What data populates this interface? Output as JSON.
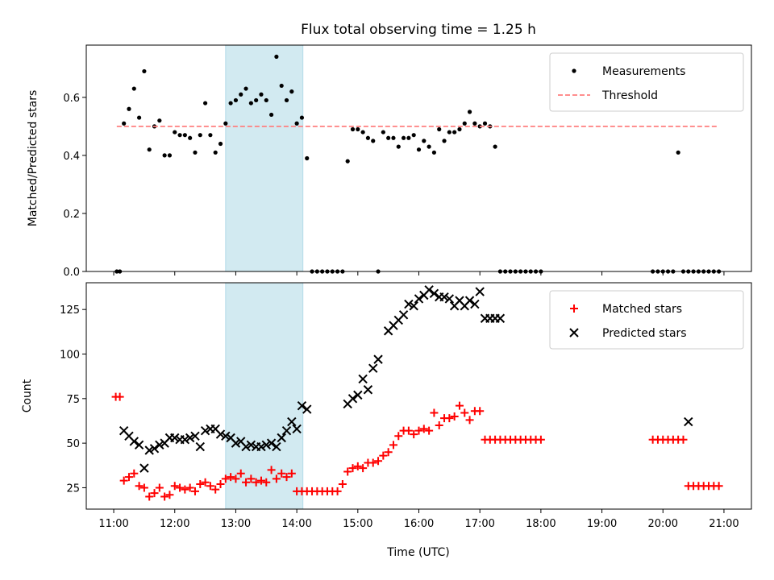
{
  "chart_data": {
    "title": "Flux total observing time = 1.25 h",
    "shaded_region": {
      "x_start": "12:50",
      "x_end": "14:06",
      "color": "#add8e6"
    },
    "xlabel": "Time (UTC)",
    "xticks": [
      "11:00",
      "12:00",
      "13:00",
      "14:00",
      "15:00",
      "16:00",
      "17:00",
      "18:00",
      "19:00",
      "20:00",
      "21:00"
    ],
    "panels": [
      {
        "type": "scatter",
        "ylabel": "Matched/Predicted stars",
        "ylim": [
          0,
          0.78
        ],
        "yticks": [
          "0.0",
          "0.2",
          "0.4",
          "0.6"
        ],
        "legend": {
          "position": "top-right"
        },
        "series": [
          {
            "name": "Measurements",
            "marker": "dot",
            "color": "#000000",
            "x": [
              "11:03",
              "11:06",
              "11:10",
              "11:15",
              "11:20",
              "11:25",
              "11:30",
              "11:35",
              "11:40",
              "11:45",
              "11:50",
              "11:55",
              "12:00",
              "12:05",
              "12:10",
              "12:15",
              "12:20",
              "12:25",
              "12:30",
              "12:35",
              "12:40",
              "12:45",
              "12:50",
              "12:55",
              "13:00",
              "13:05",
              "13:10",
              "13:15",
              "13:20",
              "13:25",
              "13:30",
              "13:35",
              "13:40",
              "13:45",
              "13:50",
              "13:55",
              "14:00",
              "14:05",
              "14:10",
              "14:15",
              "14:20",
              "14:25",
              "14:30",
              "14:35",
              "14:40",
              "14:45",
              "14:50",
              "14:55",
              "15:00",
              "15:05",
              "15:10",
              "15:15",
              "15:20",
              "15:25",
              "15:30",
              "15:35",
              "15:40",
              "15:45",
              "15:50",
              "15:55",
              "16:00",
              "16:05",
              "16:10",
              "16:15",
              "16:20",
              "16:25",
              "16:30",
              "16:35",
              "16:40",
              "16:45",
              "16:50",
              "16:55",
              "17:00",
              "17:05",
              "17:10",
              "17:15",
              "17:20",
              "17:25",
              "17:30",
              "17:35",
              "17:40",
              "17:45",
              "17:50",
              "17:55",
              "18:00",
              "19:50",
              "19:55",
              "20:00",
              "20:05",
              "20:10",
              "20:15",
              "20:20",
              "20:25",
              "20:30",
              "20:35",
              "20:40",
              "20:45",
              "20:50",
              "20:55"
            ],
            "y": [
              0.0,
              0.0,
              0.51,
              0.56,
              0.63,
              0.53,
              0.69,
              0.42,
              0.5,
              0.52,
              0.4,
              0.4,
              0.48,
              0.47,
              0.47,
              0.46,
              0.41,
              0.47,
              0.58,
              0.47,
              0.41,
              0.44,
              0.51,
              0.58,
              0.59,
              0.61,
              0.63,
              0.58,
              0.59,
              0.61,
              0.59,
              0.54,
              0.74,
              0.64,
              0.59,
              0.62,
              0.51,
              0.53,
              0.39,
              0.0,
              0.0,
              0.0,
              0.0,
              0.0,
              0.0,
              0.0,
              0.38,
              0.49,
              0.49,
              0.48,
              0.46,
              0.45,
              0.0,
              0.48,
              0.46,
              0.46,
              0.43,
              0.46,
              0.46,
              0.47,
              0.42,
              0.45,
              0.43,
              0.41,
              0.49,
              0.45,
              0.48,
              0.48,
              0.49,
              0.51,
              0.55,
              0.51,
              0.5,
              0.51,
              0.5,
              0.43,
              0.0,
              0.0,
              0.0,
              0.0,
              0.0,
              0.0,
              0.0,
              0.0,
              0.0,
              0.0,
              0.0,
              0.0,
              0.0,
              0.0,
              0.41,
              0.0,
              0.0,
              0.0,
              0.0,
              0.0,
              0.0,
              0.0,
              0.0
            ]
          },
          {
            "name": "Threshold",
            "marker": "dashed-line",
            "color": "#ff7f7f",
            "x": [
              "11:03",
              "20:55"
            ],
            "y": [
              0.5,
              0.5
            ]
          }
        ]
      },
      {
        "type": "scatter",
        "ylabel": "Count",
        "ylim": [
          13,
          140
        ],
        "yticks": [
          "25",
          "50",
          "75",
          "100",
          "125"
        ],
        "legend": {
          "position": "top-right"
        },
        "series": [
          {
            "name": "Matched stars",
            "marker": "plus",
            "color": "#ff0000",
            "x": [
              "11:02",
              "11:06",
              "11:10",
              "11:15",
              "11:20",
              "11:25",
              "11:30",
              "11:35",
              "11:40",
              "11:45",
              "11:50",
              "11:55",
              "12:00",
              "12:05",
              "12:10",
              "12:15",
              "12:20",
              "12:25",
              "12:30",
              "12:35",
              "12:40",
              "12:45",
              "12:50",
              "12:55",
              "13:00",
              "13:05",
              "13:10",
              "13:15",
              "13:20",
              "13:25",
              "13:30",
              "13:35",
              "13:40",
              "13:45",
              "13:50",
              "13:55",
              "14:00",
              "14:05",
              "14:10",
              "14:15",
              "14:20",
              "14:25",
              "14:30",
              "14:35",
              "14:40",
              "14:45",
              "14:50",
              "14:55",
              "15:00",
              "15:05",
              "15:10",
              "15:15",
              "15:20",
              "15:25",
              "15:30",
              "15:35",
              "15:40",
              "15:45",
              "15:50",
              "15:55",
              "16:00",
              "16:05",
              "16:10",
              "16:15",
              "16:20",
              "16:25",
              "16:30",
              "16:35",
              "16:40",
              "16:45",
              "16:50",
              "16:55",
              "17:00",
              "17:05",
              "17:10",
              "17:15",
              "17:20",
              "17:25",
              "17:30",
              "17:35",
              "17:40",
              "17:45",
              "17:50",
              "17:55",
              "18:00",
              "19:50",
              "19:55",
              "20:00",
              "20:05",
              "20:10",
              "20:15",
              "20:20",
              "20:25",
              "20:30",
              "20:35",
              "20:40",
              "20:45",
              "20:50",
              "20:55"
            ],
            "y": [
              76,
              76,
              29,
              31,
              33,
              26,
              25,
              20,
              22,
              25,
              20,
              21,
              26,
              25,
              24,
              25,
              23,
              27,
              28,
              26,
              24,
              27,
              30,
              31,
              30,
              33,
              28,
              30,
              28,
              29,
              28,
              35,
              30,
              33,
              31,
              33,
              23,
              23,
              23,
              23,
              23,
              23,
              23,
              23,
              23,
              27,
              34,
              36,
              37,
              36,
              39,
              39,
              40,
              43,
              45,
              49,
              54,
              57,
              57,
              55,
              57,
              58,
              57,
              67,
              60,
              64,
              64,
              65,
              71,
              67,
              63,
              68,
              68,
              52,
              52,
              52,
              52,
              52,
              52,
              52,
              52,
              52,
              52,
              52,
              52,
              52,
              52,
              52,
              52,
              52,
              52,
              52,
              26,
              26,
              26,
              26,
              26,
              26,
              26
            ]
          },
          {
            "name": "Predicted stars",
            "marker": "x",
            "color": "#000000",
            "x": [
              "11:10",
              "11:15",
              "11:20",
              "11:25",
              "11:30",
              "11:35",
              "11:40",
              "11:45",
              "11:50",
              "11:55",
              "12:00",
              "12:05",
              "12:10",
              "12:15",
              "12:20",
              "12:25",
              "12:30",
              "12:35",
              "12:40",
              "12:45",
              "12:50",
              "12:55",
              "13:00",
              "13:05",
              "13:10",
              "13:15",
              "13:20",
              "13:25",
              "13:30",
              "13:35",
              "13:40",
              "13:45",
              "13:50",
              "13:55",
              "14:00",
              "14:05",
              "14:10",
              "14:50",
              "14:55",
              "15:00",
              "15:05",
              "15:10",
              "15:15",
              "15:20",
              "15:30",
              "15:35",
              "15:40",
              "15:45",
              "15:50",
              "15:55",
              "16:00",
              "16:05",
              "16:10",
              "16:15",
              "16:20",
              "16:25",
              "16:30",
              "16:35",
              "16:40",
              "16:45",
              "16:50",
              "16:55",
              "17:00",
              "17:05",
              "17:10",
              "17:15",
              "17:20",
              "20:25"
            ],
            "y": [
              57,
              54,
              51,
              49,
              36,
              46,
              47,
              49,
              50,
              53,
              53,
              52,
              52,
              53,
              54,
              48,
              57,
              58,
              58,
              55,
              54,
              53,
              50,
              51,
              48,
              49,
              48,
              48,
              49,
              50,
              48,
              53,
              57,
              62,
              58,
              71,
              69,
              72,
              75,
              77,
              86,
              80,
              92,
              97,
              113,
              116,
              119,
              122,
              128,
              127,
              131,
              133,
              136,
              134,
              132,
              132,
              131,
              127,
              130,
              127,
              130,
              128,
              135,
              120,
              120,
              120,
              120,
              62
            ]
          }
        ]
      }
    ]
  }
}
